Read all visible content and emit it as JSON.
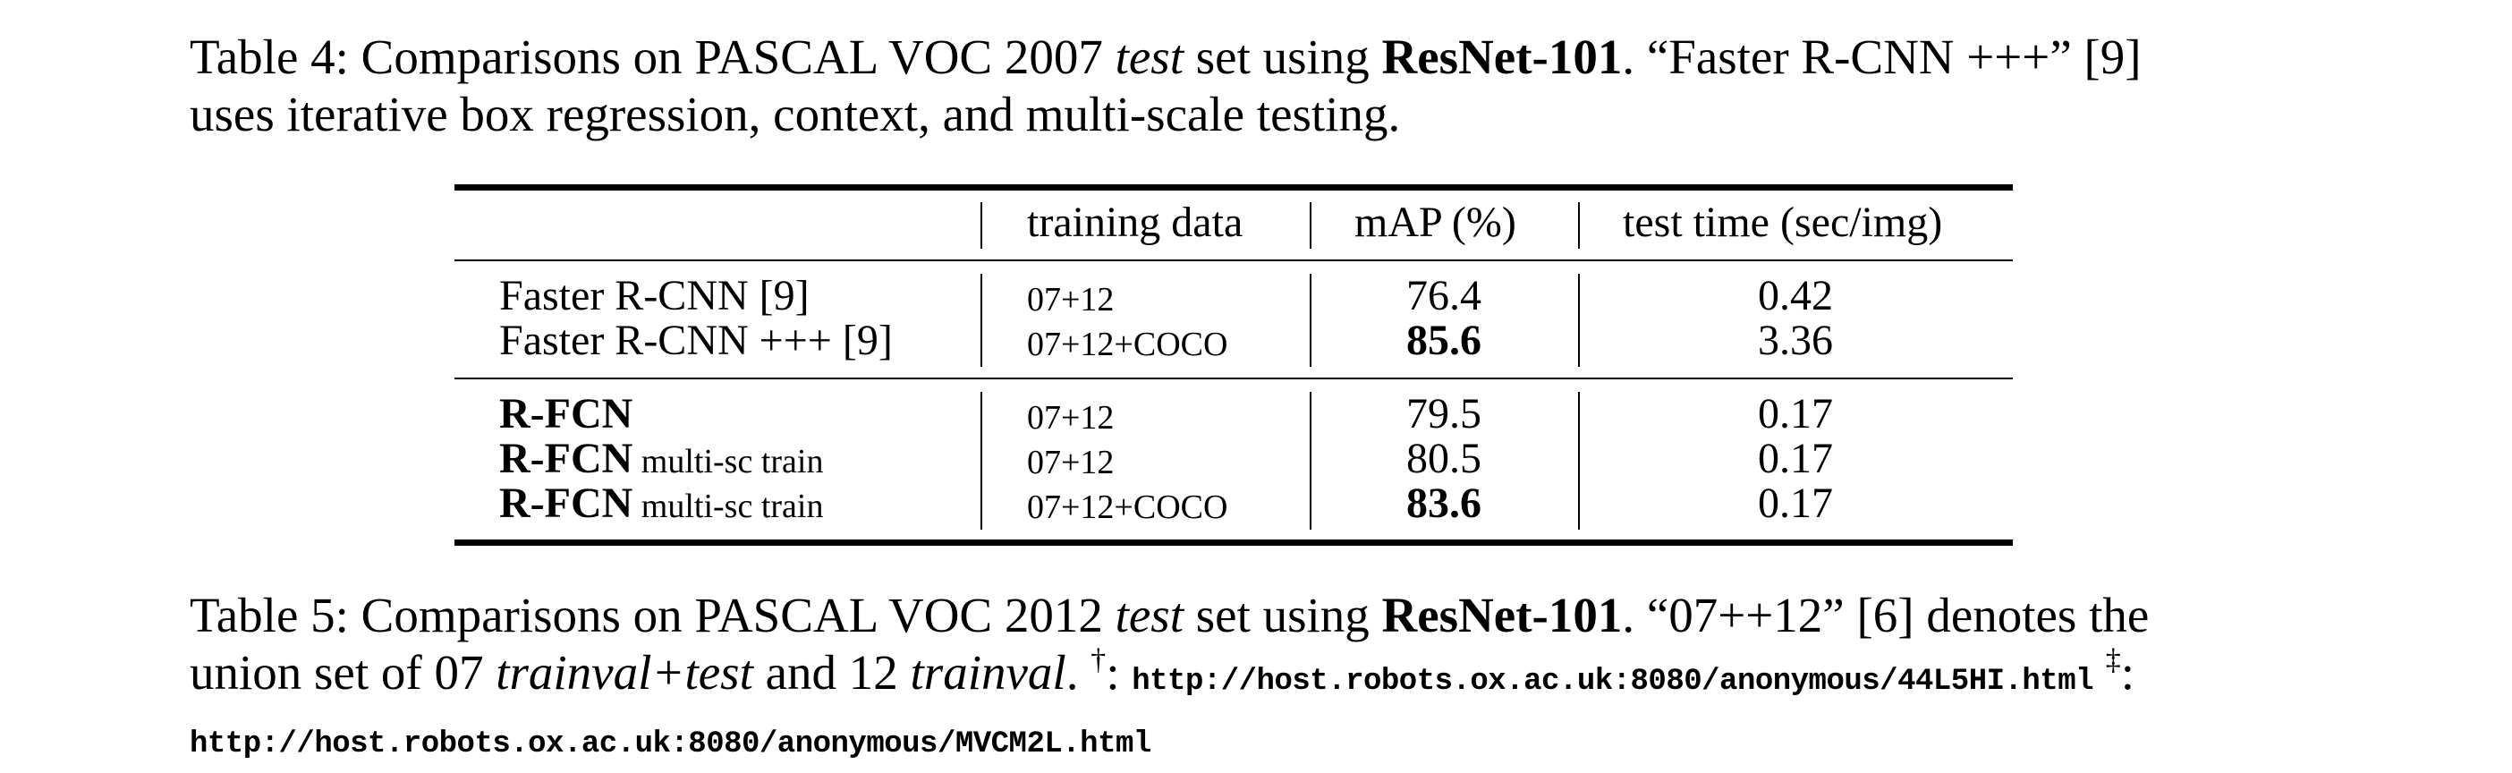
{
  "table4_caption": {
    "prefix": "Table 4: Comparisons on PASCAL VOC 2007 ",
    "italic": "test",
    "mid": " set using ",
    "bold": "ResNet-101",
    "suffix": ". “Faster R-CNN +++” [9]",
    "line2": "uses iterative box regression, context, and multi-scale testing."
  },
  "table": {
    "headers": [
      "",
      "training data",
      "mAP (%)",
      "test time (sec/img)"
    ],
    "groups": [
      {
        "rows": [
          {
            "method": "Faster R-CNN [9]",
            "method_suffix": "",
            "training": "07+12",
            "map": "76.4",
            "map_bold": false,
            "time": "0.42"
          },
          {
            "method": "Faster R-CNN +++ [9]",
            "method_suffix": "",
            "training": "07+12+COCO",
            "map": "85.6",
            "map_bold": true,
            "time": "3.36"
          }
        ]
      },
      {
        "rows": [
          {
            "method": "R-FCN",
            "method_suffix": "",
            "training": "07+12",
            "map": "79.5",
            "map_bold": false,
            "time": "0.17"
          },
          {
            "method": "R-FCN",
            "method_suffix": " multi-sc train",
            "training": "07+12",
            "map": "80.5",
            "map_bold": false,
            "time": "0.17"
          },
          {
            "method": "R-FCN",
            "method_suffix": " multi-sc train",
            "training": "07+12+COCO",
            "map": "83.6",
            "map_bold": true,
            "time": "0.17"
          }
        ]
      }
    ]
  },
  "table5_caption": {
    "prefix": "Table 5: Comparisons on PASCAL VOC 2012 ",
    "italic": "test",
    "mid": " set using ",
    "bold": "ResNet-101",
    "suffix": ". “07++12” [6] denotes the",
    "line2_a": "union set of 07 ",
    "line2_b_italic": "trainval+test",
    "line2_c": " and 12 ",
    "line2_d_italic": "trainval",
    "line2_e": ". ",
    "dagger": "†",
    "line2_f": ": ",
    "url1": "http://host.robots.ox.ac.uk:8080/anonymous/44L5HI.html",
    "ddagger": "‡",
    "line2_g": ":",
    "url2": "http://host.robots.ox.ac.uk:8080/anonymous/MVCM2L.html"
  }
}
